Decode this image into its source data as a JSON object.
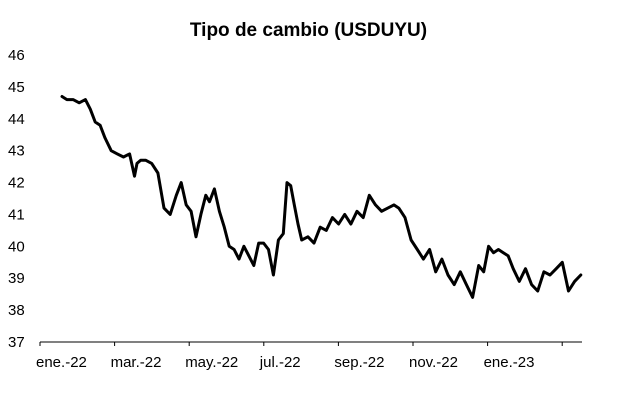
{
  "chart_data": {
    "type": "line",
    "title": "Tipo de cambio (USDUYU)",
    "xlabel": "",
    "ylabel": "",
    "ylim": [
      37,
      46
    ],
    "y_ticks": [
      "46",
      "45",
      "44",
      "43",
      "42",
      "41",
      "40",
      "39",
      "38",
      "37"
    ],
    "x_tick_labels": [
      "ene.-22",
      "mar.-22",
      "may.-22",
      "jul.-22",
      "sep.-22",
      "nov.-22",
      "ene.-23"
    ],
    "x_domain": [
      "2022-01-01",
      "2023-02-28"
    ],
    "grid": false,
    "legend": "none",
    "line_color": "#000000",
    "series": [
      {
        "x": [
          "2022-01-01",
          "2022-01-05",
          "2022-01-10",
          "2022-01-15",
          "2022-01-20",
          "2022-01-24",
          "2022-01-28",
          "2022-02-01",
          "2022-02-05",
          "2022-02-10",
          "2022-02-15",
          "2022-02-20",
          "2022-02-25",
          "2022-03-01",
          "2022-03-03",
          "2022-03-06",
          "2022-03-10",
          "2022-03-15",
          "2022-03-20",
          "2022-03-25",
          "2022-03-30",
          "2022-04-04",
          "2022-04-08",
          "2022-04-12",
          "2022-04-16",
          "2022-04-20",
          "2022-04-24",
          "2022-04-28",
          "2022-05-01",
          "2022-05-05",
          "2022-05-09",
          "2022-05-13",
          "2022-05-17",
          "2022-05-21",
          "2022-05-25",
          "2022-05-29",
          "2022-06-02",
          "2022-06-06",
          "2022-06-10",
          "2022-06-14",
          "2022-06-18",
          "2022-06-22",
          "2022-06-26",
          "2022-06-30",
          "2022-07-03",
          "2022-07-06",
          "2022-07-09",
          "2022-07-12",
          "2022-07-15",
          "2022-07-20",
          "2022-07-25",
          "2022-07-30",
          "2022-08-04",
          "2022-08-09",
          "2022-08-14",
          "2022-08-19",
          "2022-08-24",
          "2022-08-29",
          "2022-09-03",
          "2022-09-08",
          "2022-09-13",
          "2022-09-18",
          "2022-09-23",
          "2022-09-28",
          "2022-10-02",
          "2022-10-07",
          "2022-10-12",
          "2022-10-17",
          "2022-10-22",
          "2022-10-27",
          "2022-11-01",
          "2022-11-06",
          "2022-11-11",
          "2022-11-16",
          "2022-11-21",
          "2022-11-26",
          "2022-12-01",
          "2022-12-06",
          "2022-12-10",
          "2022-12-14",
          "2022-12-18",
          "2022-12-22",
          "2022-12-26",
          "2022-12-30",
          "2023-01-03",
          "2023-01-08",
          "2023-01-13",
          "2023-01-18",
          "2023-01-23",
          "2023-01-28",
          "2023-02-02",
          "2023-02-07",
          "2023-02-12",
          "2023-02-17",
          "2023-02-22",
          "2023-02-27"
        ],
        "values": [
          44.7,
          44.6,
          44.6,
          44.5,
          44.6,
          44.3,
          43.9,
          43.8,
          43.4,
          43.0,
          42.9,
          42.8,
          42.9,
          42.2,
          42.6,
          42.7,
          42.7,
          42.6,
          42.3,
          41.2,
          41.0,
          41.6,
          42.0,
          41.3,
          41.1,
          40.3,
          41.0,
          41.6,
          41.4,
          41.8,
          41.1,
          40.6,
          40.0,
          39.9,
          39.6,
          40.0,
          39.7,
          39.4,
          40.1,
          40.1,
          39.9,
          39.1,
          40.2,
          40.4,
          42.0,
          41.9,
          41.3,
          40.7,
          40.2,
          40.3,
          40.1,
          40.6,
          40.5,
          40.9,
          40.7,
          41.0,
          40.7,
          41.1,
          40.9,
          41.6,
          41.3,
          41.1,
          41.2,
          41.3,
          41.2,
          40.9,
          40.2,
          39.9,
          39.6,
          39.9,
          39.2,
          39.6,
          39.1,
          38.8,
          39.2,
          38.8,
          38.4,
          39.4,
          39.2,
          40.0,
          39.8,
          39.9,
          39.8,
          39.7,
          39.3,
          38.9,
          39.3,
          38.8,
          38.6,
          39.2,
          39.1,
          39.3,
          39.5,
          38.6,
          38.9,
          39.1
        ]
      }
    ]
  }
}
